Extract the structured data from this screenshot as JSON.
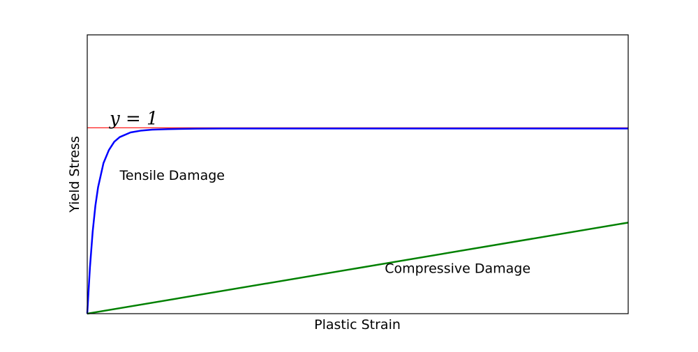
{
  "chart_data": {
    "type": "line",
    "title": "",
    "xlabel": "Plastic Strain",
    "ylabel": "Yield Stress",
    "x_ticks": [],
    "y_ticks": [],
    "xlim": [
      0,
      1
    ],
    "ylim": [
      0,
      1.5
    ],
    "grid": false,
    "reference_line": {
      "y": 1,
      "label": "y = 1",
      "color": "#ff0000"
    },
    "series": [
      {
        "color": "#0000ff",
        "x": [
          0,
          0.005,
          0.01,
          0.015,
          0.02,
          0.03,
          0.04,
          0.05,
          0.06,
          0.08,
          0.1,
          0.12,
          0.15,
          0.2,
          0.25,
          0.3,
          0.4,
          0.5,
          0.6,
          0.7,
          0.8,
          0.9,
          1.0
        ],
        "values": [
          0,
          0.25,
          0.44,
          0.58,
          0.68,
          0.81,
          0.88,
          0.925,
          0.95,
          0.975,
          0.985,
          0.99,
          0.993,
          0.995,
          0.996,
          0.996,
          0.996,
          0.996,
          0.996,
          0.996,
          0.996,
          0.996,
          0.996
        ]
      },
      {
        "color": "#008000",
        "x": [
          0,
          1
        ],
        "values": [
          0,
          0.49
        ]
      }
    ],
    "annotations": [
      {
        "text": "Tensile Damage",
        "x": 0.06,
        "y": 0.72
      },
      {
        "text": "Compressive Damage",
        "x": 0.55,
        "y": 0.22
      }
    ]
  }
}
